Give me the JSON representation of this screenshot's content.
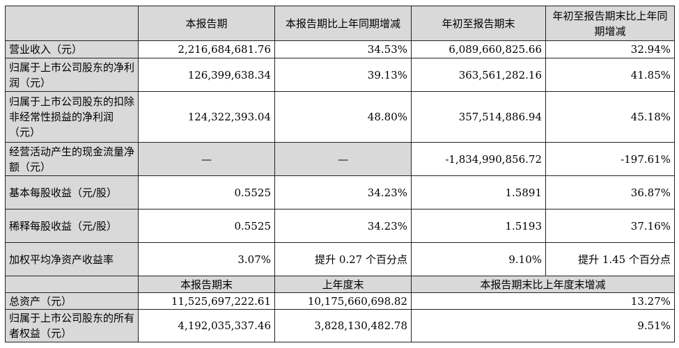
{
  "header1": [
    "",
    "本报告期",
    "本报告期比上年同期增减",
    "年初至报告期末",
    "年初至报告期末比上年同期增减"
  ],
  "rows1": [
    {
      "label": "营业收入（元）",
      "v1": "2,216,684,681.76",
      "v2": "34.53%",
      "v3": "6,089,660,825.66",
      "v4": "32.94%"
    },
    {
      "label": "归属于上市公司股东的净利润（元）",
      "v1": "126,399,638.34",
      "v2": "39.13%",
      "v3": "363,561,282.16",
      "v4": "41.85%"
    },
    {
      "label": "归属于上市公司股东的扣除非经常性损益的净利润（元）",
      "v1": "124,322,393.04",
      "v2": "48.80%",
      "v3": "357,514,886.94",
      "v4": "45.18%"
    },
    {
      "label": "经营活动产生的现金流量净额（元）",
      "v1": "—",
      "v2": "—",
      "v3": "-1,834,990,856.72",
      "v4": "-197.61%"
    },
    {
      "label": "基本每股收益（元/股）",
      "v1": "0.5525",
      "v2": "34.23%",
      "v3": "1.5891",
      "v4": "36.87%"
    },
    {
      "label": "稀释每股收益（元/股）",
      "v1": "0.5525",
      "v2": "34.23%",
      "v3": "1.5193",
      "v4": "37.16%"
    },
    {
      "label": "加权平均净资产收益率",
      "v1": "3.07%",
      "v2": "提升 0.27 个百分点",
      "v3": "9.10%",
      "v4": "提升 1.45 个百分点"
    }
  ],
  "header2": [
    "",
    "本报告期末",
    "上年度末",
    "本报告期末比上年度末增减"
  ],
  "rows2": [
    {
      "label": "总资产（元）",
      "v1": "11,525,697,222.61",
      "v2": "10,175,660,698.82",
      "v3": "13.27%"
    },
    {
      "label": "归属于上市公司股东的所有者权益（元）",
      "v1": "4,192,035,337.46",
      "v2": "3,828,130,482.78",
      "v3": "9.51%"
    }
  ]
}
